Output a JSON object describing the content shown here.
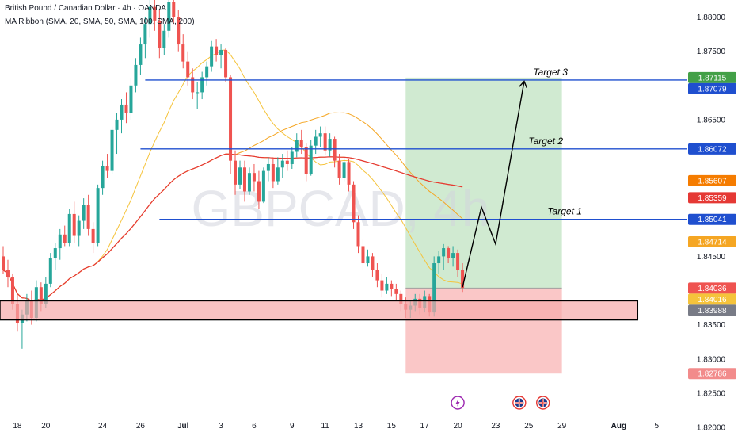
{
  "header": {
    "title": "British Pound / Canadian Dollar · 4h · OANDA",
    "indicator": "MA Ribbon (SMA, 20, SMA, 50, SMA, 100, SMA, 200)"
  },
  "watermark": "GBPCAD, 4h",
  "colors": {
    "up": "#26a69a",
    "down": "#ef5350",
    "ma20": "#f5c33b",
    "ma50": "#f5a623",
    "ma100": "#f57c00",
    "ma200": "#e53935",
    "level": "#1f4fcf",
    "profit_zone": "#c8e6c9",
    "loss_zone": "#f8b4b4",
    "support_zone": "#f7a9a9"
  },
  "chart_data": {
    "type": "candlestick",
    "symbol": "GBPCAD",
    "timeframe": "4h",
    "ylim": [
      1.8175,
      1.8825
    ],
    "y_ticks": [
      "1.88000",
      "1.87500",
      "1.86500",
      "1.84500",
      "1.83500",
      "1.83000",
      "1.82500",
      "1.82000"
    ],
    "x_ticks": [
      {
        "label": "18",
        "bar": 3
      },
      {
        "label": "20",
        "bar": 9
      },
      {
        "label": "24",
        "bar": 21
      },
      {
        "label": "26",
        "bar": 29
      },
      {
        "label": "Jul",
        "bar": 38
      },
      {
        "label": "3",
        "bar": 46
      },
      {
        "label": "6",
        "bar": 53
      },
      {
        "label": "9",
        "bar": 61
      },
      {
        "label": "11",
        "bar": 68
      },
      {
        "label": "13",
        "bar": 75
      },
      {
        "label": "15",
        "bar": 82
      },
      {
        "label": "17",
        "bar": 89
      },
      {
        "label": "20",
        "bar": 96
      },
      {
        "label": "23",
        "bar": 104
      },
      {
        "label": "25",
        "bar": 111
      },
      {
        "label": "29",
        "bar": 118
      },
      {
        "label": "Aug",
        "bar": 130
      },
      {
        "label": "5",
        "bar": 138
      }
    ],
    "price_labels": [
      {
        "value": 1.87115,
        "label": "1.87115",
        "color": "#43a047"
      },
      {
        "value": 1.87079,
        "label": "1.87079",
        "color": "#1f4fcf"
      },
      {
        "value": 1.86072,
        "label": "1.86072",
        "color": "#1f4fcf"
      },
      {
        "value": 1.85607,
        "label": "1.85607",
        "color": "#f57c00"
      },
      {
        "value": 1.85359,
        "label": "1.85359",
        "color": "#e53935"
      },
      {
        "value": 1.85041,
        "label": "1.85041",
        "color": "#1f4fcf"
      },
      {
        "value": 1.84714,
        "label": "1.84714",
        "color": "#f5a623"
      },
      {
        "value": 1.84036,
        "label": "1.84036",
        "color": "#ef5350"
      },
      {
        "value": 1.84016,
        "label": "1.84016",
        "color": "#f5c33b"
      },
      {
        "value": 1.83988,
        "label": "1.83988",
        "color": "#787b86"
      },
      {
        "value": 1.82786,
        "label": "1.82786",
        "color": "#f28b8b"
      }
    ],
    "levels": [
      {
        "name": "Target 3",
        "value": 1.87079,
        "from_bar": 30
      },
      {
        "name": "Target 2",
        "value": 1.86072,
        "from_bar": 29
      },
      {
        "name": "Target 1",
        "value": 1.85041,
        "from_bar": 33
      }
    ],
    "position": {
      "entry": 1.84036,
      "target": 1.87115,
      "stop": 1.82786,
      "from_bar": 85,
      "to_bar": 118
    },
    "support_zone": {
      "top": 1.8385,
      "bottom": 1.8357,
      "from_bar": 0,
      "to_bar": 134
    },
    "projection_path": [
      {
        "bar": 97,
        "value": 1.8405
      },
      {
        "bar": 101,
        "value": 1.8522
      },
      {
        "bar": 104,
        "value": 1.8468
      },
      {
        "bar": 110,
        "value": 1.8705
      }
    ],
    "events": [
      {
        "type": "lightning",
        "bar": 96
      },
      {
        "type": "flag",
        "bar": 109
      },
      {
        "type": "flag",
        "bar": 114
      }
    ],
    "candles": [
      [
        1.845,
        1.8465,
        1.8425,
        1.843
      ],
      [
        1.843,
        1.8445,
        1.8405,
        1.842
      ],
      [
        1.842,
        1.8425,
        1.8372,
        1.838
      ],
      [
        1.838,
        1.8395,
        1.834,
        1.8352
      ],
      [
        1.8352,
        1.8372,
        1.8315,
        1.8365
      ],
      [
        1.8365,
        1.8395,
        1.8355,
        1.8385
      ],
      [
        1.8385,
        1.84,
        1.835,
        1.836
      ],
      [
        1.836,
        1.8415,
        1.8355,
        1.8405
      ],
      [
        1.8405,
        1.8412,
        1.837,
        1.838
      ],
      [
        1.838,
        1.842,
        1.8375,
        1.841
      ],
      [
        1.841,
        1.8455,
        1.8405,
        1.8448
      ],
      [
        1.8448,
        1.847,
        1.843,
        1.8462
      ],
      [
        1.8462,
        1.849,
        1.8445,
        1.8482
      ],
      [
        1.8482,
        1.8495,
        1.8465,
        1.847
      ],
      [
        1.847,
        1.852,
        1.8465,
        1.8512
      ],
      [
        1.8512,
        1.853,
        1.847,
        1.848
      ],
      [
        1.848,
        1.851,
        1.8465,
        1.8502
      ],
      [
        1.8502,
        1.8535,
        1.849,
        1.8525
      ],
      [
        1.8525,
        1.854,
        1.848,
        1.849
      ],
      [
        1.849,
        1.85,
        1.8455,
        1.847
      ],
      [
        1.847,
        1.8555,
        1.8465,
        1.855
      ],
      [
        1.855,
        1.859,
        1.854,
        1.8582
      ],
      [
        1.8582,
        1.86,
        1.8565,
        1.8575
      ],
      [
        1.8575,
        1.864,
        1.857,
        1.8635
      ],
      [
        1.8635,
        1.866,
        1.86,
        1.865
      ],
      [
        1.865,
        1.868,
        1.863,
        1.8672
      ],
      [
        1.8672,
        1.869,
        1.8645,
        1.866
      ],
      [
        1.866,
        1.871,
        1.865,
        1.87
      ],
      [
        1.87,
        1.874,
        1.869,
        1.873
      ],
      [
        1.873,
        1.877,
        1.8715,
        1.876
      ],
      [
        1.876,
        1.88,
        1.874,
        1.879
      ],
      [
        1.879,
        1.8825,
        1.877,
        1.8815
      ],
      [
        1.8815,
        1.884,
        1.878,
        1.8795
      ],
      [
        1.8795,
        1.881,
        1.874,
        1.8755
      ],
      [
        1.8755,
        1.879,
        1.8745,
        1.878
      ],
      [
        1.878,
        1.883,
        1.877,
        1.8822
      ],
      [
        1.8822,
        1.8835,
        1.879,
        1.88
      ],
      [
        1.88,
        1.881,
        1.875,
        1.876
      ],
      [
        1.876,
        1.8775,
        1.8725,
        1.8735
      ],
      [
        1.8735,
        1.875,
        1.87,
        1.8712
      ],
      [
        1.8712,
        1.8725,
        1.868,
        1.869
      ],
      [
        1.869,
        1.8705,
        1.8665,
        1.869
      ],
      [
        1.869,
        1.872,
        1.868,
        1.8712
      ],
      [
        1.8712,
        1.8735,
        1.87,
        1.8728
      ],
      [
        1.8728,
        1.8765,
        1.872,
        1.8757
      ],
      [
        1.8757,
        1.8768,
        1.8735,
        1.8745
      ],
      [
        1.8745,
        1.876,
        1.8725,
        1.8752
      ],
      [
        1.8752,
        1.8755,
        1.8705,
        1.8712
      ],
      [
        1.8712,
        1.8715,
        1.857,
        1.859
      ],
      [
        1.859,
        1.8605,
        1.854,
        1.8555
      ],
      [
        1.8555,
        1.859,
        1.8548,
        1.858
      ],
      [
        1.858,
        1.859,
        1.853,
        1.8545
      ],
      [
        1.8545,
        1.858,
        1.854,
        1.8572
      ],
      [
        1.8572,
        1.8585,
        1.8545,
        1.856
      ],
      [
        1.856,
        1.8575,
        1.852,
        1.853
      ],
      [
        1.853,
        1.858,
        1.8528,
        1.8575
      ],
      [
        1.8575,
        1.8595,
        1.856,
        1.8585
      ],
      [
        1.8585,
        1.8595,
        1.855,
        1.856
      ],
      [
        1.856,
        1.8595,
        1.8555,
        1.858
      ],
      [
        1.858,
        1.86,
        1.8565,
        1.859
      ],
      [
        1.859,
        1.8605,
        1.8575,
        1.8585
      ],
      [
        1.8585,
        1.861,
        1.8578,
        1.8603
      ],
      [
        1.8603,
        1.863,
        1.8595,
        1.862
      ],
      [
        1.862,
        1.8635,
        1.86,
        1.861
      ],
      [
        1.861,
        1.8615,
        1.856,
        1.857
      ],
      [
        1.857,
        1.862,
        1.8568,
        1.8612
      ],
      [
        1.8612,
        1.8635,
        1.86,
        1.8625
      ],
      [
        1.8625,
        1.864,
        1.861,
        1.863
      ],
      [
        1.863,
        1.864,
        1.8598,
        1.8605
      ],
      [
        1.8605,
        1.863,
        1.8596,
        1.8622
      ],
      [
        1.8622,
        1.8625,
        1.858,
        1.859
      ],
      [
        1.859,
        1.86,
        1.8555,
        1.8565
      ],
      [
        1.8565,
        1.8595,
        1.856,
        1.8588
      ],
      [
        1.8588,
        1.8592,
        1.8545,
        1.8555
      ],
      [
        1.8555,
        1.856,
        1.849,
        1.85
      ],
      [
        1.85,
        1.851,
        1.8455,
        1.8465
      ],
      [
        1.8465,
        1.8475,
        1.843,
        1.844
      ],
      [
        1.844,
        1.846,
        1.8435,
        1.845
      ],
      [
        1.845,
        1.8455,
        1.842,
        1.843
      ],
      [
        1.843,
        1.844,
        1.8405,
        1.8415
      ],
      [
        1.8415,
        1.8425,
        1.839,
        1.84
      ],
      [
        1.84,
        1.842,
        1.8395,
        1.841
      ],
      [
        1.841,
        1.8415,
        1.8392,
        1.8402
      ],
      [
        1.8402,
        1.841,
        1.8385,
        1.8395
      ],
      [
        1.8395,
        1.84,
        1.837,
        1.838
      ],
      [
        1.838,
        1.839,
        1.836,
        1.8372
      ],
      [
        1.8372,
        1.8385,
        1.836,
        1.8378
      ],
      [
        1.8378,
        1.8395,
        1.837,
        1.8388
      ],
      [
        1.8388,
        1.8395,
        1.8365,
        1.8375
      ],
      [
        1.8375,
        1.84,
        1.8368,
        1.8392
      ],
      [
        1.8392,
        1.8395,
        1.8362,
        1.8368
      ],
      [
        1.8368,
        1.845,
        1.8362,
        1.844
      ],
      [
        1.844,
        1.8458,
        1.8425,
        1.845
      ],
      [
        1.845,
        1.8468,
        1.843,
        1.8462
      ],
      [
        1.8462,
        1.8465,
        1.844,
        1.8448
      ],
      [
        1.8448,
        1.8465,
        1.8435,
        1.8455
      ],
      [
        1.8455,
        1.846,
        1.842,
        1.843
      ],
      [
        1.843,
        1.844,
        1.8398,
        1.8404
      ]
    ]
  }
}
